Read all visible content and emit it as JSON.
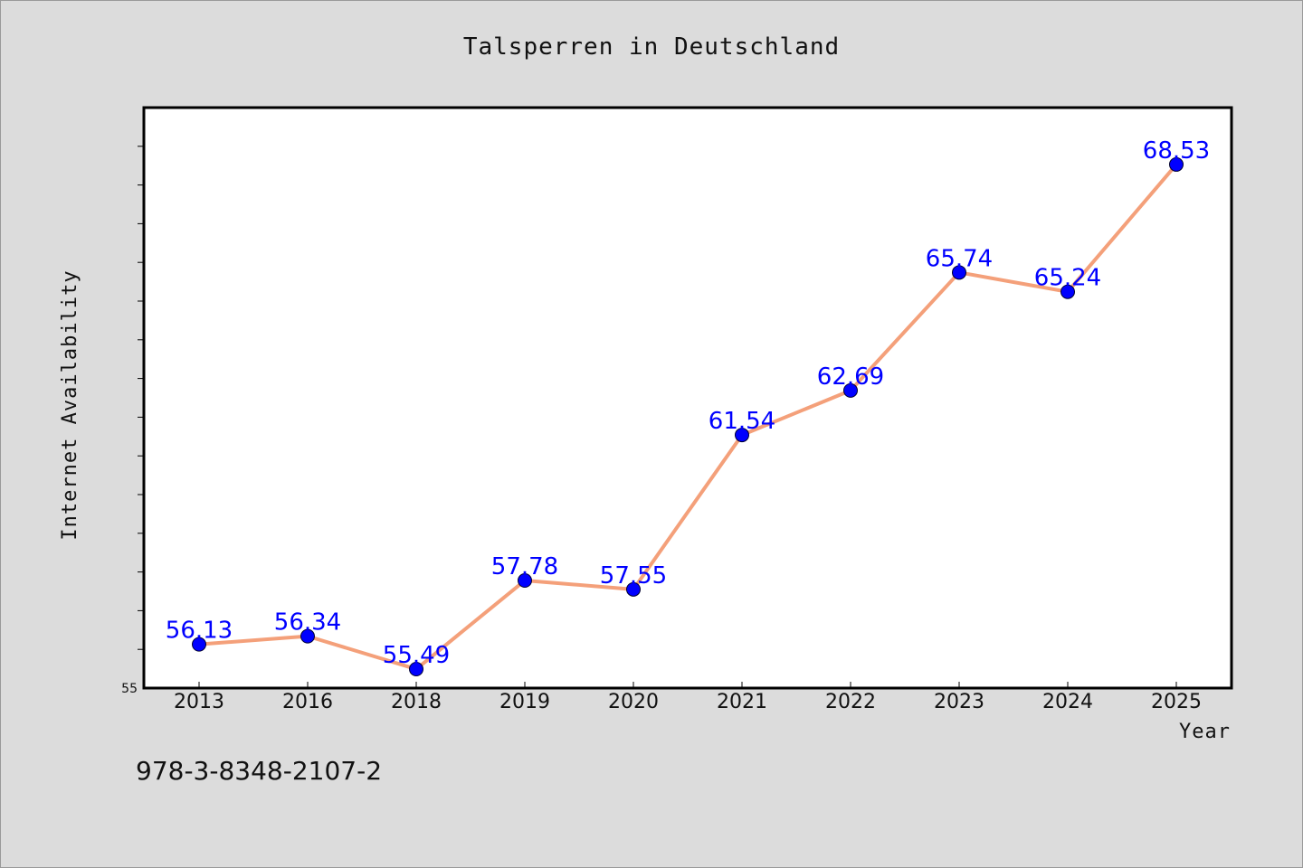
{
  "chart_data": {
    "type": "line",
    "title": "Talsperren in Deutschland",
    "xlabel": "Year",
    "ylabel": "Internet Availability",
    "categories": [
      "2013",
      "2016",
      "2018",
      "2019",
      "2020",
      "2021",
      "2022",
      "2023",
      "2024",
      "2025"
    ],
    "series": [
      {
        "values": [
          56.13,
          56.34,
          55.49,
          57.78,
          57.55,
          61.54,
          62.69,
          65.74,
          65.24,
          68.53
        ]
      }
    ],
    "value_labels": [
      "56.13",
      "56.34",
      "55.49",
      "57.78",
      "57.55",
      "61.54",
      "62.69",
      "65.74",
      "65.24",
      "68.53"
    ],
    "ylim": [
      55,
      70
    ],
    "ytick_labels": [
      "55"
    ],
    "grid": false,
    "line_color": "#f4a07a",
    "marker_color": "#0000ff",
    "label_color": "#0000ff"
  },
  "footer": {
    "isbn": "978-3-8348-2107-2"
  }
}
